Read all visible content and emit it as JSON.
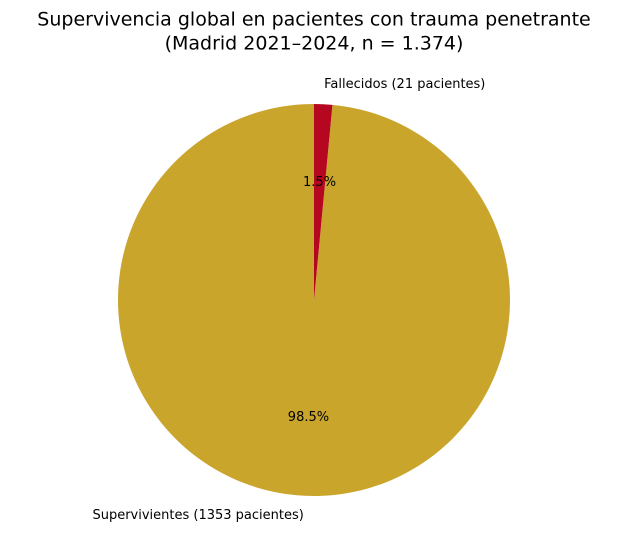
{
  "chart_data": {
    "type": "pie",
    "title": "Supervivencia global en pacientes con trauma penetrante",
    "subtitle": "(Madrid 2021–2024, n = 1.374)",
    "categories": [
      "Supervivientes (1353 pacientes)",
      "Fallecidos (21 pacientes)"
    ],
    "values": [
      98.5,
      1.5
    ],
    "value_labels": [
      "98.5%",
      "1.5%"
    ],
    "colors": [
      "#c9a52c",
      "#b5071f"
    ],
    "startangle": 90,
    "direction": "counterclockwise"
  }
}
